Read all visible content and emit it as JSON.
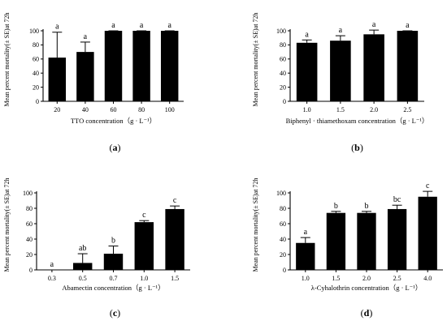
{
  "chart_data": [
    {
      "type": "bar",
      "panel": "a",
      "ylabel": "Mean percent mortality(± SE)at 72h",
      "xlabel": "TTO concentration（g · L⁻¹）",
      "categories": [
        "20",
        "40",
        "60",
        "80",
        "100"
      ],
      "values": [
        62,
        70,
        100,
        100,
        100
      ],
      "errors": [
        36,
        14,
        0,
        0,
        0
      ],
      "letters": [
        "a",
        "a",
        "a",
        "a",
        "a"
      ],
      "ylim": [
        0,
        100
      ],
      "yticks": [
        "0",
        "20",
        "40",
        "60",
        "80",
        "100"
      ]
    },
    {
      "type": "bar",
      "panel": "b",
      "ylabel": "Mean percent mortality(± SE)at 72h",
      "xlabel": "Biphenyl · thiamethoxam concentration（g · L⁻¹）",
      "categories": [
        "1.0",
        "1.5",
        "2.0",
        "2.5"
      ],
      "values": [
        83,
        86,
        95,
        100
      ],
      "errors": [
        4,
        7,
        6,
        0
      ],
      "letters": [
        "a",
        "a",
        "a",
        "a"
      ],
      "ylim": [
        0,
        100
      ],
      "yticks": [
        "0",
        "20",
        "40",
        "60",
        "80",
        "100"
      ]
    },
    {
      "type": "bar",
      "panel": "c",
      "ylabel": "Mean percent mortality(± SE)at 72h",
      "xlabel": "Abamectin concentration（g · L⁻¹）",
      "categories": [
        "0.3",
        "0.5",
        "0.7",
        "1.0",
        "1.5"
      ],
      "values": [
        0,
        9,
        21,
        62,
        79
      ],
      "errors": [
        0,
        12,
        10,
        2,
        4
      ],
      "letters": [
        "a",
        "ab",
        "b",
        "c",
        "c"
      ],
      "ylim": [
        0,
        100
      ],
      "yticks": [
        "0",
        "20",
        "40",
        "60",
        "80",
        "100"
      ]
    },
    {
      "type": "bar",
      "panel": "d",
      "ylabel": "Mean percent mortality(± SE)at 72h",
      "xlabel": "λ-Cyhalothrin concentration（g · L⁻¹）",
      "categories": [
        "1.0",
        "1.5",
        "2.0",
        "2.5",
        "4.0"
      ],
      "values": [
        35,
        74,
        74,
        79,
        95
      ],
      "errors": [
        7,
        2,
        2,
        5,
        7
      ],
      "letters": [
        "a",
        "b",
        "b",
        "bc",
        "c"
      ],
      "ylim": [
        0,
        100
      ],
      "yticks": [
        "0",
        "20",
        "40",
        "60",
        "80",
        "100"
      ]
    }
  ],
  "panel_labels": [
    "a",
    "b",
    "c",
    "d"
  ],
  "colors": {
    "bar": "#000000",
    "axis": "#000000"
  }
}
